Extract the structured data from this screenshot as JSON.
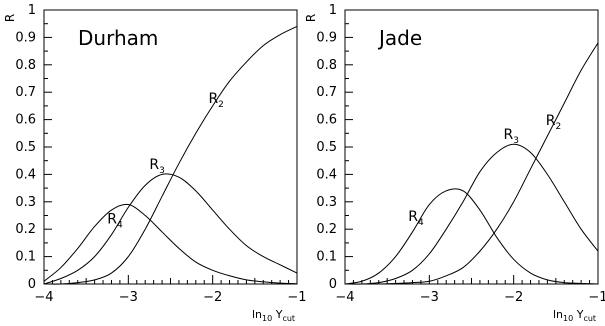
{
  "chart_data": [
    {
      "type": "line",
      "title": "Durham",
      "ylabel": "R",
      "xlabel": {
        "base": "ln",
        "base_sub": "10",
        "var": "Y",
        "var_sub": "cut"
      },
      "xlim": [
        -4,
        -1
      ],
      "ylim": [
        0,
        1
      ],
      "xticks": [
        -4,
        -3,
        -2,
        -1
      ],
      "xtick_labels": [
        "−4",
        "−3",
        "−2",
        "−1"
      ],
      "yticks": [
        0,
        0.1,
        0.2,
        0.3,
        0.4,
        0.5,
        0.6,
        0.7,
        0.8,
        0.9,
        1
      ],
      "ytick_labels": [
        "0",
        "0.1",
        "0.2",
        "0.3",
        "0.4",
        "0.5",
        "0.6",
        "0.7",
        "0.8",
        "0.9",
        "1"
      ],
      "series": [
        {
          "name": "R",
          "name_sub": "4",
          "x": [
            -4.0,
            -3.8,
            -3.6,
            -3.4,
            -3.2,
            -3.0,
            -2.8,
            -2.6,
            -2.4,
            -2.2,
            -2.0,
            -1.8,
            -1.6,
            -1.4,
            -1.2,
            -1.0
          ],
          "y": [
            0.01,
            0.06,
            0.13,
            0.21,
            0.27,
            0.29,
            0.25,
            0.19,
            0.13,
            0.08,
            0.05,
            0.03,
            0.015,
            0.008,
            0.003,
            0.001
          ]
        },
        {
          "name": "R",
          "name_sub": "3",
          "x": [
            -4.0,
            -3.8,
            -3.6,
            -3.4,
            -3.2,
            -3.0,
            -2.8,
            -2.6,
            -2.4,
            -2.2,
            -2.0,
            -1.8,
            -1.6,
            -1.4,
            -1.2,
            -1.0
          ],
          "y": [
            0.0,
            0.02,
            0.05,
            0.1,
            0.18,
            0.28,
            0.36,
            0.4,
            0.39,
            0.34,
            0.27,
            0.2,
            0.14,
            0.1,
            0.07,
            0.04
          ]
        },
        {
          "name": "R",
          "name_sub": "2",
          "x": [
            -4.0,
            -3.8,
            -3.6,
            -3.4,
            -3.2,
            -3.0,
            -2.8,
            -2.6,
            -2.4,
            -2.2,
            -2.0,
            -1.8,
            -1.6,
            -1.4,
            -1.2,
            -1.0
          ],
          "y": [
            0.0,
            0.0,
            0.005,
            0.015,
            0.04,
            0.1,
            0.2,
            0.32,
            0.44,
            0.55,
            0.65,
            0.74,
            0.81,
            0.87,
            0.91,
            0.94
          ]
        }
      ],
      "labels": [
        {
          "series": 0,
          "x": -3.25,
          "y": 0.22
        },
        {
          "series": 1,
          "x": -2.75,
          "y": 0.42
        },
        {
          "series": 2,
          "x": -2.05,
          "y": 0.66
        }
      ]
    },
    {
      "type": "line",
      "title": "Jade",
      "ylabel": "R",
      "xlabel": {
        "base": "ln",
        "base_sub": "10",
        "var": "Y",
        "var_sub": "cut"
      },
      "xlim": [
        -4,
        -1
      ],
      "ylim": [
        0,
        1
      ],
      "xticks": [
        -4,
        -3,
        -2,
        -1
      ],
      "xtick_labels": [
        "−4",
        "−3",
        "−2",
        "−1"
      ],
      "yticks": [
        0,
        0.1,
        0.2,
        0.3,
        0.4,
        0.5,
        0.6,
        0.7,
        0.8,
        0.9,
        1
      ],
      "ytick_labels": [
        "0",
        "0.1",
        "0.2",
        "0.3",
        "0.4",
        "0.5",
        "0.6",
        "0.7",
        "0.8",
        "0.9",
        "1"
      ],
      "series": [
        {
          "name": "R",
          "name_sub": "4",
          "x": [
            -4.0,
            -3.8,
            -3.6,
            -3.4,
            -3.2,
            -3.0,
            -2.8,
            -2.6,
            -2.4,
            -2.2,
            -2.0,
            -1.8,
            -1.6,
            -1.4,
            -1.2,
            -1.0
          ],
          "y": [
            0.0,
            0.01,
            0.04,
            0.1,
            0.19,
            0.29,
            0.34,
            0.34,
            0.27,
            0.17,
            0.09,
            0.04,
            0.015,
            0.005,
            0.002,
            0.0
          ]
        },
        {
          "name": "R",
          "name_sub": "3",
          "x": [
            -4.0,
            -3.8,
            -3.6,
            -3.4,
            -3.2,
            -3.0,
            -2.8,
            -2.6,
            -2.4,
            -2.2,
            -2.0,
            -1.8,
            -1.6,
            -1.4,
            -1.2,
            -1.0
          ],
          "y": [
            0.0,
            0.0,
            0.005,
            0.02,
            0.05,
            0.11,
            0.2,
            0.3,
            0.41,
            0.48,
            0.51,
            0.48,
            0.4,
            0.3,
            0.2,
            0.12
          ]
        },
        {
          "name": "R",
          "name_sub": "2",
          "x": [
            -4.0,
            -3.8,
            -3.6,
            -3.4,
            -3.2,
            -3.0,
            -2.8,
            -2.6,
            -2.4,
            -2.2,
            -2.0,
            -1.8,
            -1.6,
            -1.4,
            -1.2,
            -1.0
          ],
          "y": [
            0.0,
            0.0,
            0.0,
            0.002,
            0.005,
            0.01,
            0.03,
            0.06,
            0.12,
            0.2,
            0.3,
            0.42,
            0.54,
            0.66,
            0.78,
            0.88
          ]
        }
      ],
      "labels": [
        {
          "series": 0,
          "x": -3.25,
          "y": 0.23
        },
        {
          "series": 1,
          "x": -2.12,
          "y": 0.53
        },
        {
          "series": 2,
          "x": -1.62,
          "y": 0.58
        }
      ]
    }
  ]
}
